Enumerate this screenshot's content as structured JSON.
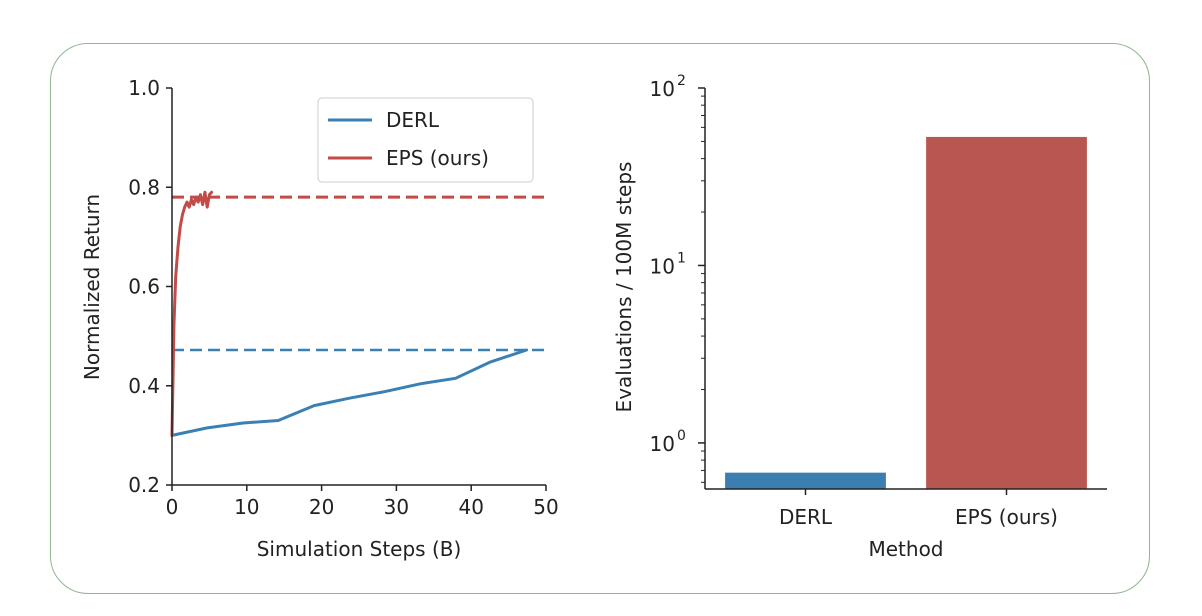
{
  "chart_data": [
    {
      "type": "line",
      "title": "",
      "xlabel": "Simulation Steps (B)",
      "ylabel": "Normalized Return",
      "xlim": [
        0,
        50
      ],
      "ylim": [
        0.2,
        1.0
      ],
      "xticks": [
        "0",
        "10",
        "20",
        "30",
        "40",
        "50"
      ],
      "yticks": [
        "0.2",
        "0.4",
        "0.6",
        "0.8",
        "1.0"
      ],
      "grid": false,
      "legend_position": "top-right",
      "series": [
        {
          "name": "DERL",
          "color": "#3b80b4",
          "x": [
            0,
            4.7,
            9.5,
            14.2,
            19,
            23.7,
            28.4,
            33.2,
            37.9,
            42.6,
            47.4
          ],
          "y": [
            0.3,
            0.315,
            0.325,
            0.33,
            0.36,
            0.375,
            0.388,
            0.404,
            0.415,
            0.448,
            0.472
          ],
          "reference_line": 0.472
        },
        {
          "name": "EPS (ours)",
          "color": "#c24b47",
          "x": [
            0,
            0.25,
            0.5,
            0.8,
            1.1,
            1.4,
            1.7,
            2.0,
            2.3,
            2.6,
            2.9,
            3.2,
            3.5,
            3.8,
            4.1,
            4.4,
            4.7,
            5.0,
            5.3
          ],
          "y": [
            0.3,
            0.52,
            0.62,
            0.68,
            0.72,
            0.745,
            0.76,
            0.77,
            0.76,
            0.775,
            0.765,
            0.78,
            0.77,
            0.785,
            0.765,
            0.79,
            0.76,
            0.785,
            0.79
          ],
          "reference_line": 0.78
        }
      ]
    },
    {
      "type": "bar",
      "title": "",
      "xlabel": "Method",
      "ylabel": "Evaluations / 100M steps",
      "yscale": "log",
      "ylim": [
        0.55,
        100
      ],
      "yticks": [
        {
          "base": "10",
          "exp": "0",
          "value": 1
        },
        {
          "base": "10",
          "exp": "1",
          "value": 10
        },
        {
          "base": "10",
          "exp": "2",
          "value": 100
        }
      ],
      "categories": [
        "DERL",
        "EPS (ours)"
      ],
      "values": [
        0.68,
        53
      ],
      "colors": [
        "#3d7eb0",
        "#b85752"
      ],
      "grid": false
    }
  ]
}
